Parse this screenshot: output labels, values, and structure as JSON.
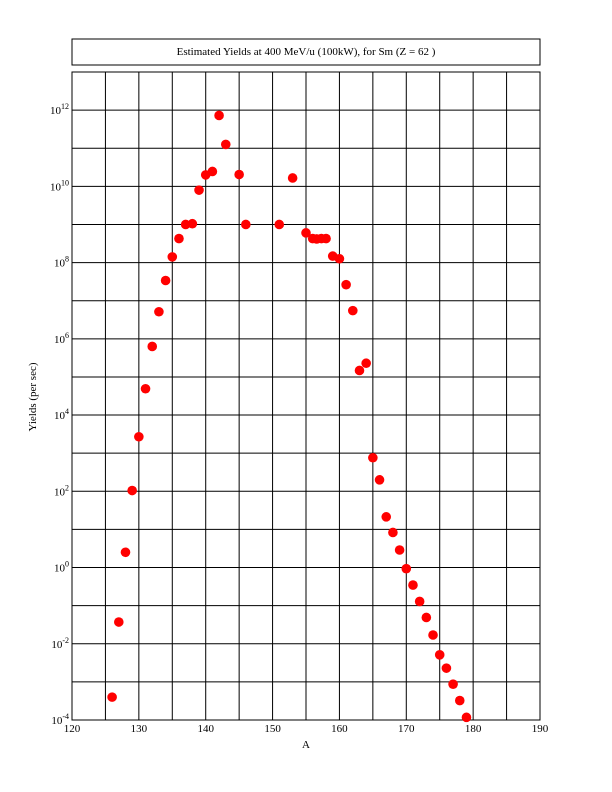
{
  "chart_data": {
    "type": "scatter",
    "title": "Estimated Yields at 400 MeV/u (100kW), for Sm  (Z = 62 )",
    "xlabel": "A",
    "ylabel": "Yields (per sec)",
    "xlim": [
      120,
      190
    ],
    "ylim_log10": [
      -4,
      13
    ],
    "yscale": "log",
    "grid": true,
    "x_ticks": [
      {
        "value": 120,
        "label": "120"
      },
      {
        "value": 130,
        "label": "130"
      },
      {
        "value": 140,
        "label": "140"
      },
      {
        "value": 150,
        "label": "150"
      },
      {
        "value": 160,
        "label": "160"
      },
      {
        "value": 170,
        "label": "170"
      },
      {
        "value": 180,
        "label": "180"
      },
      {
        "value": 190,
        "label": "190"
      }
    ],
    "y_ticks": [
      {
        "exp": -4,
        "base": "10",
        "sup": "-4"
      },
      {
        "exp": -2,
        "base": "10",
        "sup": "-2"
      },
      {
        "exp": 0,
        "base": "10",
        "sup": "0"
      },
      {
        "exp": 2,
        "base": "10",
        "sup": "2"
      },
      {
        "exp": 4,
        "base": "10",
        "sup": "4"
      },
      {
        "exp": 6,
        "base": "10",
        "sup": "6"
      },
      {
        "exp": 8,
        "base": "10",
        "sup": "8"
      },
      {
        "exp": 10,
        "base": "10",
        "sup": "10"
      },
      {
        "exp": 12,
        "base": "10",
        "sup": "12"
      }
    ],
    "marker_color": "#ff0000",
    "series": [
      {
        "points": [
          {
            "x": 126,
            "y": -3.4
          },
          {
            "x": 127,
            "y": -1.43
          },
          {
            "x": 128,
            "y": 0.4
          },
          {
            "x": 129,
            "y": 2.02
          },
          {
            "x": 130,
            "y": 3.43
          },
          {
            "x": 131,
            "y": 4.69
          },
          {
            "x": 132,
            "y": 5.8
          },
          {
            "x": 133,
            "y": 6.71
          },
          {
            "x": 134,
            "y": 7.53
          },
          {
            "x": 135,
            "y": 8.15
          },
          {
            "x": 136,
            "y": 8.63
          },
          {
            "x": 137,
            "y": 9.0
          },
          {
            "x": 138,
            "y": 9.02
          },
          {
            "x": 139,
            "y": 9.9
          },
          {
            "x": 140,
            "y": 10.3
          },
          {
            "x": 141,
            "y": 10.39
          },
          {
            "x": 142,
            "y": 11.86
          },
          {
            "x": 143,
            "y": 11.1
          },
          {
            "x": 145,
            "y": 10.31
          },
          {
            "x": 146,
            "y": 9.0
          },
          {
            "x": 151,
            "y": 9.0
          },
          {
            "x": 153,
            "y": 10.22
          },
          {
            "x": 155,
            "y": 8.78
          },
          {
            "x": 156,
            "y": 8.63
          },
          {
            "x": 156.6,
            "y": 8.62
          },
          {
            "x": 157.3,
            "y": 8.63
          },
          {
            "x": 158,
            "y": 8.63
          },
          {
            "x": 159,
            "y": 8.17
          },
          {
            "x": 160,
            "y": 8.1
          },
          {
            "x": 161,
            "y": 7.42
          },
          {
            "x": 162,
            "y": 6.74
          },
          {
            "x": 163,
            "y": 5.17
          },
          {
            "x": 164,
            "y": 5.36
          },
          {
            "x": 165,
            "y": 2.88
          },
          {
            "x": 166,
            "y": 2.3
          },
          {
            "x": 167,
            "y": 1.33
          },
          {
            "x": 168,
            "y": 0.92
          },
          {
            "x": 169,
            "y": 0.46
          },
          {
            "x": 170,
            "y": -0.03
          },
          {
            "x": 171,
            "y": -0.46
          },
          {
            "x": 172,
            "y": -0.89
          },
          {
            "x": 173,
            "y": -1.31
          },
          {
            "x": 174,
            "y": -1.77
          },
          {
            "x": 175,
            "y": -2.29
          },
          {
            "x": 176,
            "y": -2.64
          },
          {
            "x": 177,
            "y": -3.06
          },
          {
            "x": 178,
            "y": -3.49
          },
          {
            "x": 179,
            "y": -3.93
          }
        ]
      }
    ]
  }
}
